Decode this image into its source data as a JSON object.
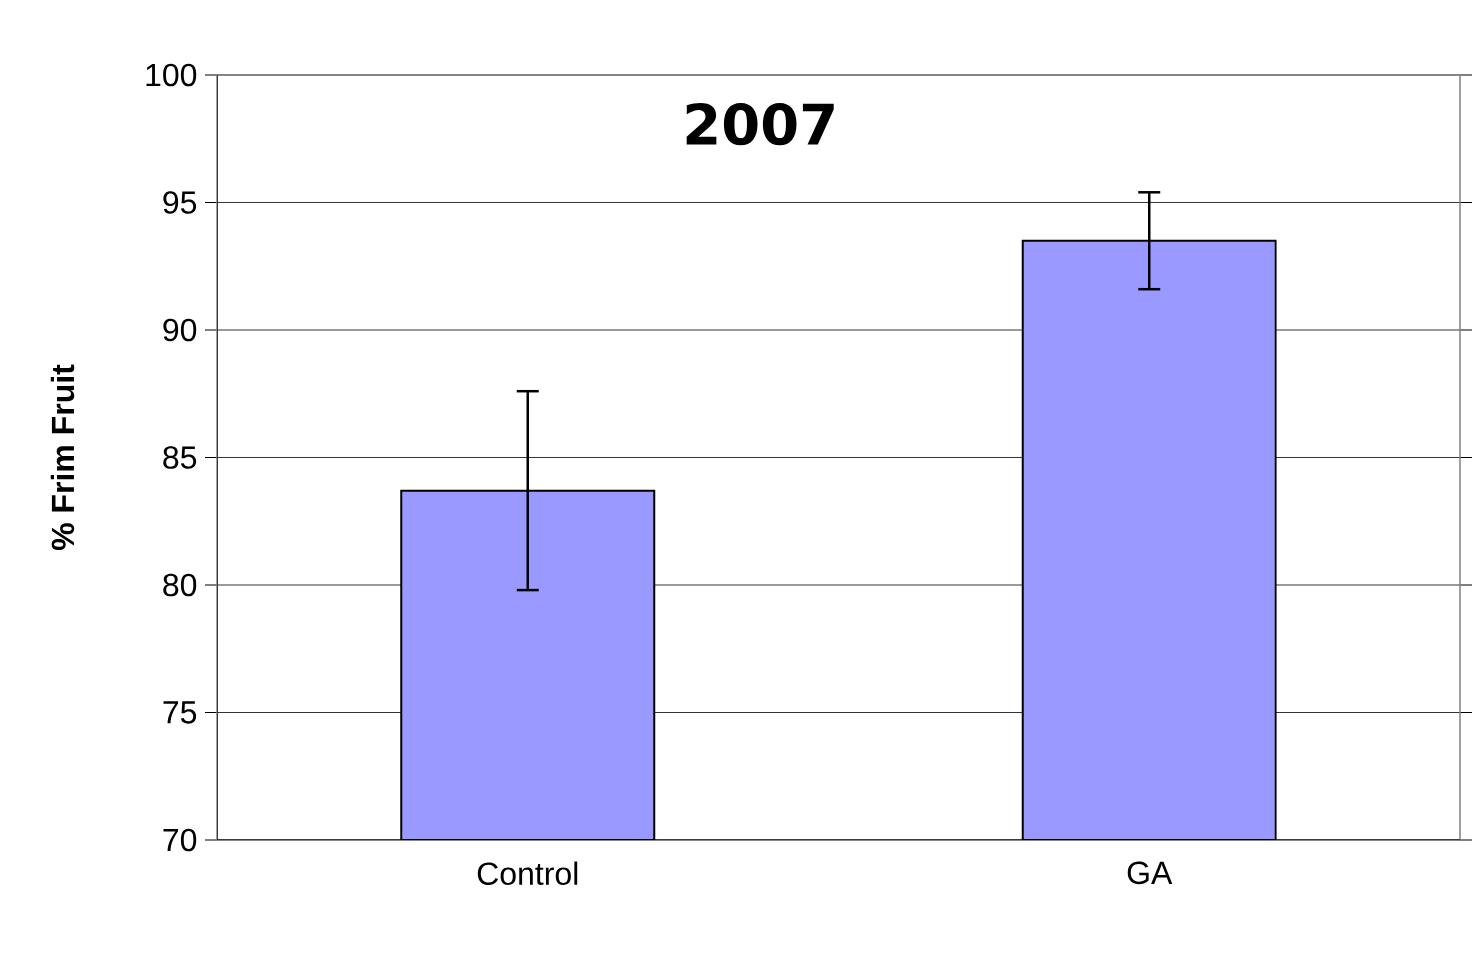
{
  "chart_data": {
    "type": "bar",
    "title": "2007",
    "ylabel": "% Frim Fruit",
    "categories": [
      "Control",
      "GA"
    ],
    "values": [
      83.7,
      93.5
    ],
    "errors": [
      3.9,
      1.9
    ],
    "color": "#9999ff",
    "ylim": [
      70,
      100
    ],
    "yticks": [
      70,
      75,
      80,
      85,
      90,
      95,
      100
    ],
    "grid": "y"
  }
}
